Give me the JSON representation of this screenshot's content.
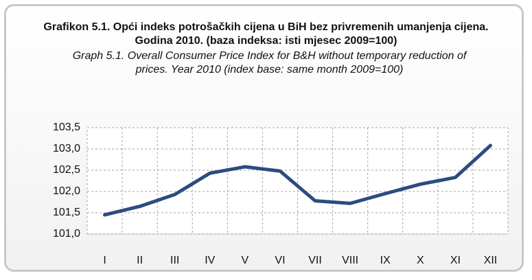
{
  "chart_data": {
    "type": "line",
    "title": "Grafikon 5.1. Opći indeks potrošačkih cijena u BiH bez privremenih umanjenja cijena. Godina 2010. (baza indeksa: isti mjesec 2009=100)",
    "subtitle": "Graph 5.1. Overall Consumer Price Index  for B&H without temporary reduction of prices. Year 2010 (index base: same month 2009=100)",
    "categories": [
      "I",
      "II",
      "III",
      "IV",
      "V",
      "VI",
      "VII",
      "VIII",
      "IX",
      "X",
      "XI",
      "XII"
    ],
    "series": [
      {
        "color": "#2b4c7e",
        "values": [
          101.45,
          101.65,
          101.93,
          102.43,
          102.58,
          102.48,
          101.78,
          101.72,
          101.95,
          102.17,
          102.33,
          103.08
        ]
      }
    ],
    "ylim": [
      101.0,
      103.5
    ],
    "yticks": [
      {
        "value": 101.0,
        "label": "101,0"
      },
      {
        "value": 101.5,
        "label": "101,5"
      },
      {
        "value": 102.0,
        "label": "102,0"
      },
      {
        "value": 102.5,
        "label": "102,5"
      },
      {
        "value": 103.0,
        "label": "103,0"
      },
      {
        "value": 103.5,
        "label": "103,5"
      }
    ],
    "grid": true
  }
}
